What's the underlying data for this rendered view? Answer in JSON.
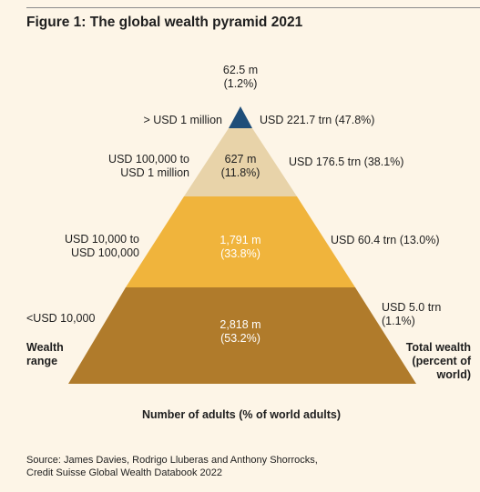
{
  "title": "Figure 1: The global wealth pyramid 2021",
  "colors": {
    "background": "#fdf5e7",
    "tier_top": "#1f4e79",
    "tier_second": "#e8d3a9",
    "tier_third": "#f0b43c",
    "tier_bottom": "#b07b2b"
  },
  "tiers": [
    {
      "wealth_range": "> USD 1 million",
      "adults": "62.5 m",
      "adults_pct": "(1.2%)",
      "total_wealth": "USD 221.7 trn (47.8%)"
    },
    {
      "wealth_range_line1": "USD 100,000 to",
      "wealth_range_line2": "USD 1 million",
      "adults": "627 m",
      "adults_pct": "(11.8%)",
      "total_wealth": "USD 176.5 trn (38.1%)"
    },
    {
      "wealth_range_line1": "USD 10,000 to",
      "wealth_range_line2": "USD 100,000",
      "adults": "1,791 m",
      "adults_pct": "(33.8%)",
      "total_wealth": "USD 60.4 trn (13.0%)"
    },
    {
      "wealth_range": "<USD 10,000",
      "adults": "2,818 m",
      "adults_pct": "(53.2%)",
      "total_wealth_line1": "USD 5.0 trn",
      "total_wealth_line2": "(1.1%)"
    }
  ],
  "axis_labels": {
    "left_line1": "Wealth",
    "left_line2": "range",
    "right_line1": "Total wealth",
    "right_line2": "(percent of",
    "right_line3": "world)",
    "bottom": "Number of adults (% of world adults)"
  },
  "source_line1": "Source: James Davies, Rodrigo Lluberas and Anthony Shorrocks,",
  "source_line2": "Credit Suisse Global Wealth Databook 2022"
}
